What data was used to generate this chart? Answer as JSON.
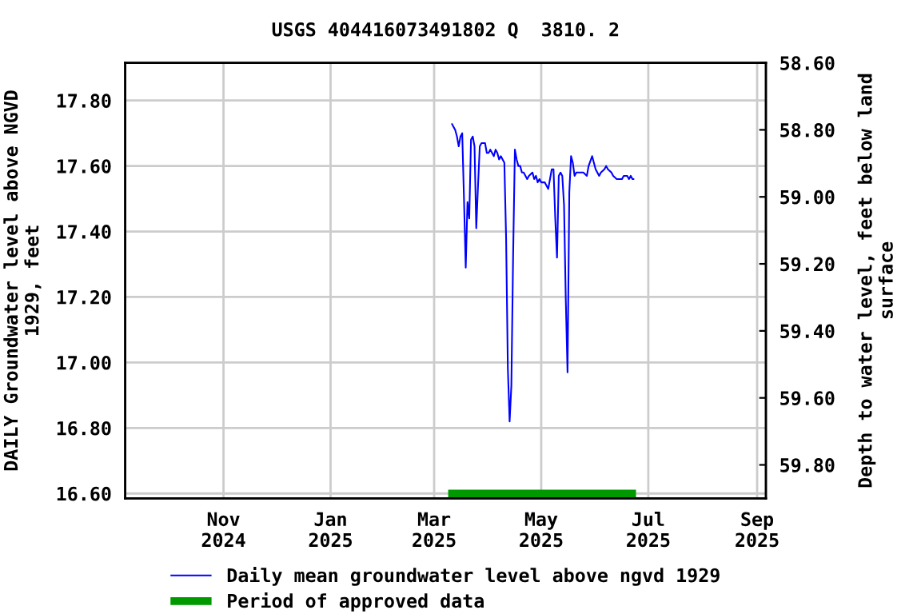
{
  "chart_data": {
    "type": "line",
    "title": "USGS 404416073491802 Q  3810. 2",
    "ylabel": "DAILY Groundwater level above NGVD\n1929, feet",
    "y2label": "Depth to water level, feet below land\nsurface",
    "xlim": [
      "2024-09-06",
      "2025-09-06"
    ],
    "xticks": [
      {
        "value": "2024-11-01",
        "label": "Nov\n2024"
      },
      {
        "value": "2025-01-01",
        "label": "Jan\n2025"
      },
      {
        "value": "2025-03-01",
        "label": "Mar\n2025"
      },
      {
        "value": "2025-05-01",
        "label": "May\n2025"
      },
      {
        "value": "2025-07-01",
        "label": "Jul\n2025"
      },
      {
        "value": "2025-09-01",
        "label": "Sep\n2025"
      }
    ],
    "ylim": [
      16.585,
      17.915
    ],
    "yticks": [
      {
        "value": 16.6,
        "label": "16.60"
      },
      {
        "value": 16.8,
        "label": "16.80"
      },
      {
        "value": 17.0,
        "label": "17.00"
      },
      {
        "value": 17.2,
        "label": "17.20"
      },
      {
        "value": 17.4,
        "label": "17.40"
      },
      {
        "value": 17.6,
        "label": "17.60"
      },
      {
        "value": 17.8,
        "label": "17.80"
      }
    ],
    "y2lim": [
      59.9,
      58.6
    ],
    "y2ticks": [
      {
        "value": 58.6,
        "label": "58.60"
      },
      {
        "value": 58.8,
        "label": "58.80"
      },
      {
        "value": 59.0,
        "label": "59.00"
      },
      {
        "value": 59.2,
        "label": "59.20"
      },
      {
        "value": 59.4,
        "label": "59.40"
      },
      {
        "value": 59.6,
        "label": "59.60"
      },
      {
        "value": 59.8,
        "label": "59.80"
      }
    ],
    "grid": true,
    "legend": "bottom",
    "series": [
      {
        "name": "Daily mean groundwater level above ngvd 1929",
        "color": "#0000ff",
        "x": [
          "2025-03-11",
          "2025-03-12",
          "2025-03-13",
          "2025-03-14",
          "2025-03-15",
          "2025-03-16",
          "2025-03-17",
          "2025-03-18",
          "2025-03-19",
          "2025-03-20",
          "2025-03-21",
          "2025-03-22",
          "2025-03-23",
          "2025-03-24",
          "2025-03-25",
          "2025-03-26",
          "2025-03-27",
          "2025-03-28",
          "2025-03-29",
          "2025-03-30",
          "2025-03-31",
          "2025-04-01",
          "2025-04-02",
          "2025-04-03",
          "2025-04-04",
          "2025-04-05",
          "2025-04-06",
          "2025-04-07",
          "2025-04-08",
          "2025-04-09",
          "2025-04-10",
          "2025-04-11",
          "2025-04-12",
          "2025-04-13",
          "2025-04-14",
          "2025-04-15",
          "2025-04-16",
          "2025-04-17",
          "2025-04-18",
          "2025-04-19",
          "2025-04-20",
          "2025-04-21",
          "2025-04-23",
          "2025-04-24",
          "2025-04-26",
          "2025-04-27",
          "2025-04-28",
          "2025-04-29",
          "2025-04-30",
          "2025-05-01",
          "2025-05-03",
          "2025-05-04",
          "2025-05-05",
          "2025-05-06",
          "2025-05-07",
          "2025-05-08",
          "2025-05-09",
          "2025-05-10",
          "2025-05-11",
          "2025-05-12",
          "2025-05-13",
          "2025-05-14",
          "2025-05-15",
          "2025-05-16",
          "2025-05-17",
          "2025-05-18",
          "2025-05-19",
          "2025-05-20",
          "2025-05-21",
          "2025-05-23",
          "2025-05-25",
          "2025-05-27",
          "2025-05-28",
          "2025-05-30",
          "2025-05-31",
          "2025-06-01",
          "2025-06-03",
          "2025-06-04",
          "2025-06-06",
          "2025-06-07",
          "2025-06-08",
          "2025-06-10",
          "2025-06-11",
          "2025-06-13",
          "2025-06-14",
          "2025-06-16",
          "2025-06-17",
          "2025-06-19",
          "2025-06-20",
          "2025-06-21",
          "2025-06-22",
          "2025-06-23"
        ],
        "values": [
          17.73,
          17.72,
          17.71,
          17.69,
          17.66,
          17.69,
          17.7,
          17.5,
          17.29,
          17.49,
          17.44,
          17.68,
          17.69,
          17.66,
          17.41,
          17.54,
          17.66,
          17.67,
          17.67,
          17.67,
          17.64,
          17.64,
          17.65,
          17.64,
          17.63,
          17.65,
          17.64,
          17.62,
          17.63,
          17.62,
          17.61,
          17.38,
          16.98,
          16.82,
          16.93,
          17.33,
          17.65,
          17.62,
          17.6,
          17.6,
          17.58,
          17.58,
          17.56,
          17.57,
          17.58,
          17.56,
          17.57,
          17.55,
          17.56,
          17.55,
          17.55,
          17.54,
          17.53,
          17.56,
          17.59,
          17.59,
          17.44,
          17.32,
          17.57,
          17.58,
          17.57,
          17.48,
          17.19,
          16.97,
          17.52,
          17.63,
          17.61,
          17.57,
          17.58,
          17.58,
          17.58,
          17.57,
          17.6,
          17.63,
          17.61,
          17.59,
          17.57,
          17.58,
          17.59,
          17.6,
          17.59,
          17.58,
          17.57,
          17.56,
          17.56,
          17.56,
          17.57,
          17.57,
          17.56,
          17.57,
          17.56,
          17.56
        ]
      },
      {
        "name": "Period of approved data",
        "color": "#009900",
        "x": [
          "2025-03-09",
          "2025-06-24"
        ],
        "values": [
          16.6,
          16.6
        ]
      }
    ]
  }
}
